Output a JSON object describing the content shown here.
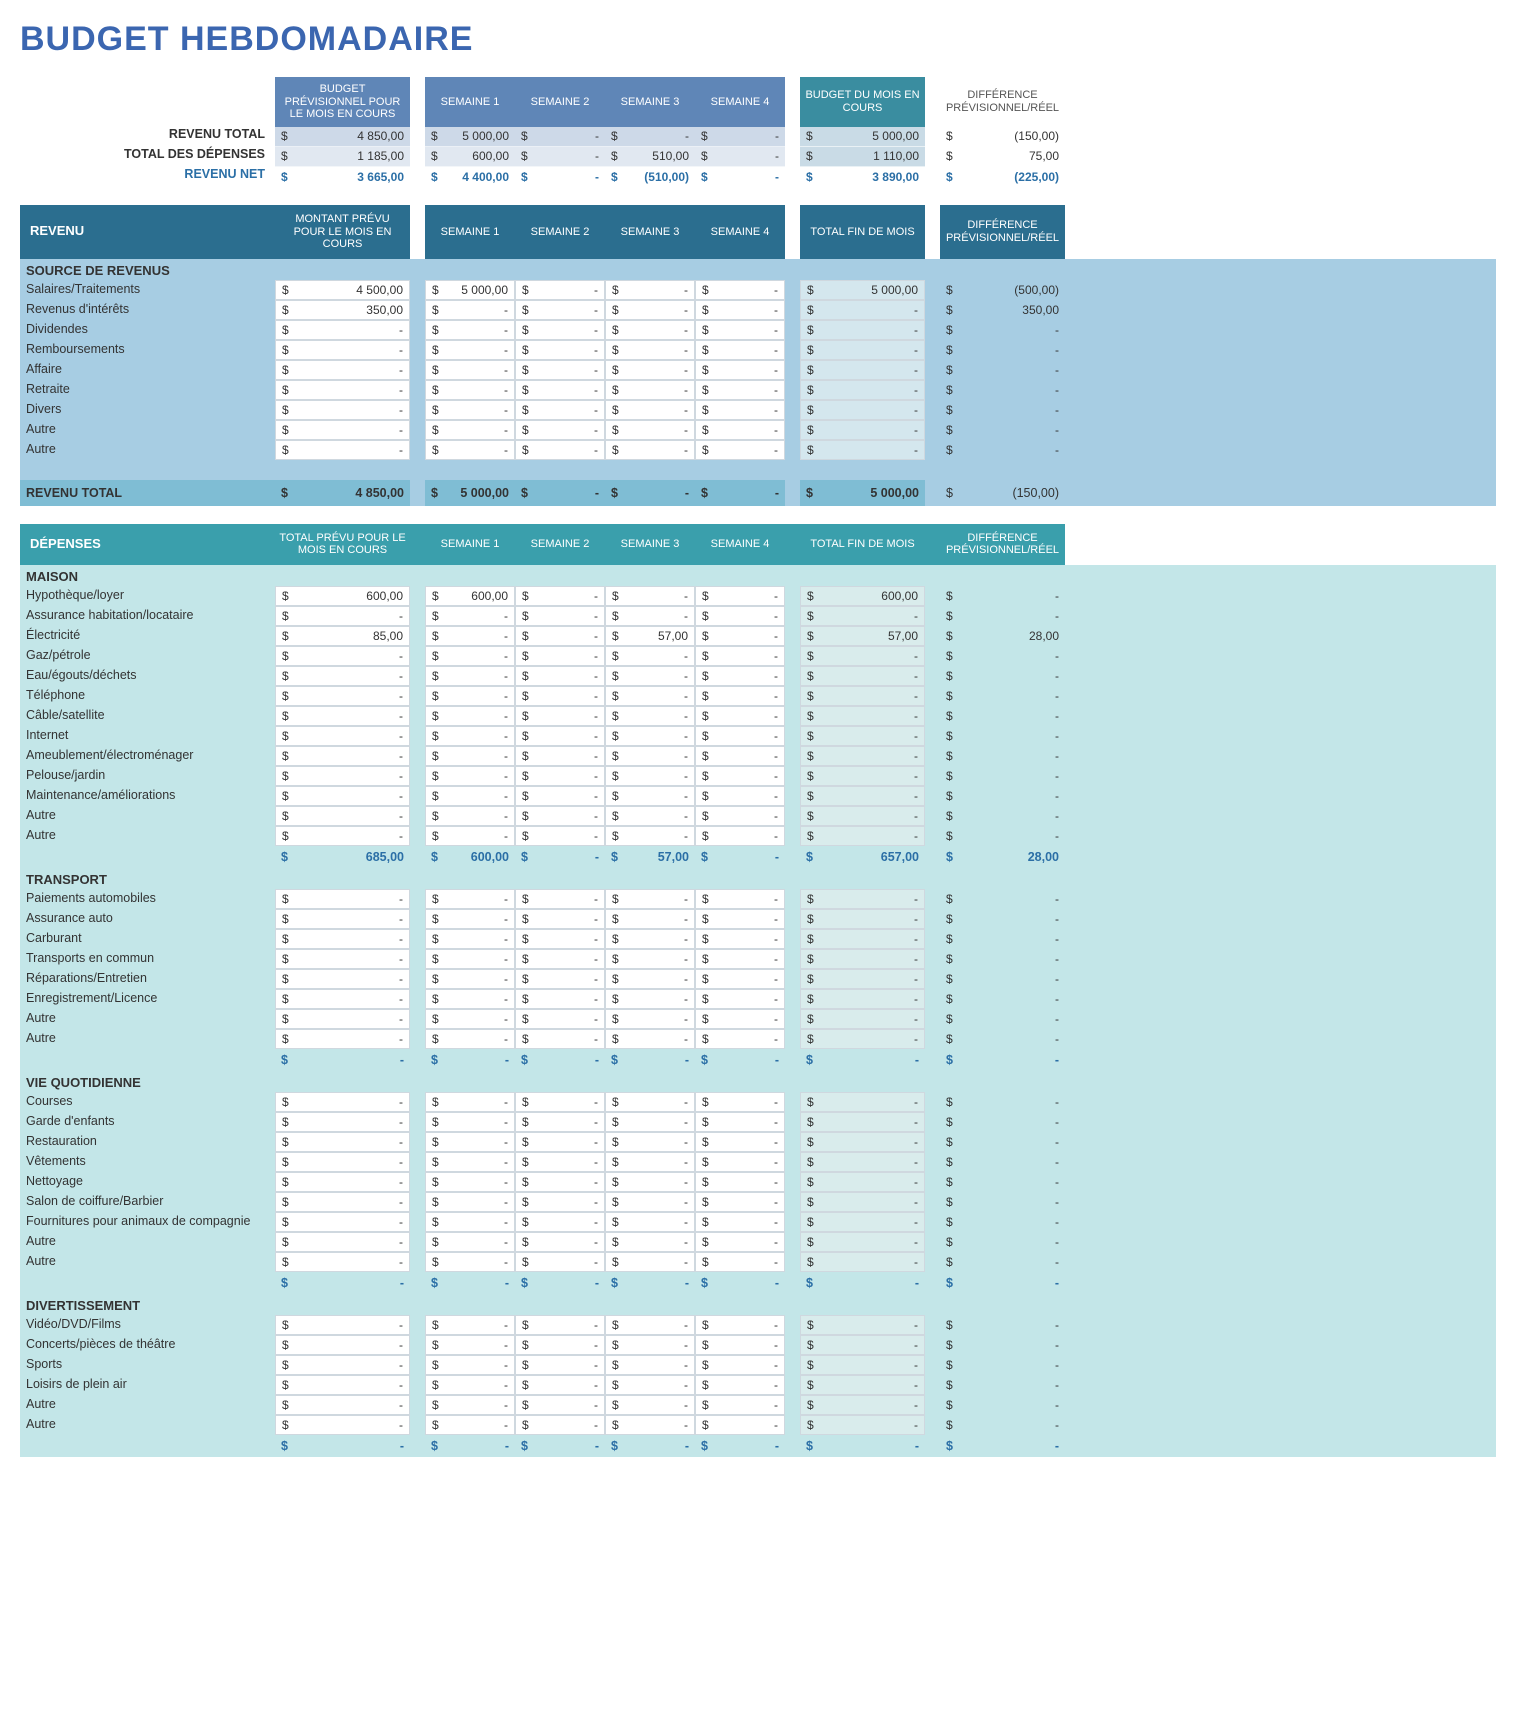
{
  "title": "BUDGET HEBDOMADAIRE",
  "colors": {
    "title": "#3b66b0",
    "pill_blue": "#5f86b7",
    "pill_teal": "#3a8da0",
    "bar_revenu": "#2b6e8f",
    "bar_depense": "#3a9fac",
    "body_revenu": "#a7cde3",
    "body_depense": "#c3e6e8",
    "accent_text": "#2b6fa6"
  },
  "headers": {
    "budget_prev": "BUDGET PRÉVISIONNEL POUR LE MOIS EN COURS",
    "week1": "SEMAINE 1",
    "week2": "SEMAINE 2",
    "week3": "SEMAINE 3",
    "week4": "SEMAINE 4",
    "budget_month": "BUDGET DU MOIS EN COURS",
    "diff": "DIFFÉRENCE PRÉVISIONNEL/RÉEL",
    "montant_prev": "MONTANT PRÉVU POUR LE MOIS EN COURS",
    "total_fin": "TOTAL FIN DE MOIS",
    "total_prev": "TOTAL PRÉVU POUR LE MOIS EN COURS"
  },
  "summary": {
    "rows": [
      {
        "label": "REVENU TOTAL",
        "prev": "4 850,00",
        "w1": "5 000,00",
        "w2": "-",
        "w3": "-",
        "w4": "-",
        "month": "5 000,00",
        "diff": "(150,00)"
      },
      {
        "label": "TOTAL DES DÉPENSES",
        "prev": "1 185,00",
        "w1": "600,00",
        "w2": "-",
        "w3": "510,00",
        "w4": "-",
        "month": "1 110,00",
        "diff": "75,00"
      }
    ],
    "net": {
      "label": "REVENU NET",
      "prev": "3 665,00",
      "w1": "4 400,00",
      "w2": "-",
      "w3": "(510,00)",
      "w4": "-",
      "month": "3 890,00",
      "diff": "(225,00)"
    }
  },
  "revenu": {
    "section_label": "REVENU",
    "source_label": "SOURCE DE REVENUS",
    "total_label": "REVENU TOTAL",
    "items": [
      {
        "label": "Salaires/Traitements",
        "prev": "4 500,00",
        "w1": "5 000,00",
        "w2": "-",
        "w3": "-",
        "w4": "-",
        "tot": "5 000,00",
        "diff": "(500,00)"
      },
      {
        "label": "Revenus d'intérêts",
        "prev": "350,00",
        "w1": "-",
        "w2": "-",
        "w3": "-",
        "w4": "-",
        "tot": "-",
        "diff": "350,00"
      },
      {
        "label": "Dividendes",
        "prev": "-",
        "w1": "-",
        "w2": "-",
        "w3": "-",
        "w4": "-",
        "tot": "-",
        "diff": "-"
      },
      {
        "label": "Remboursements",
        "prev": "-",
        "w1": "-",
        "w2": "-",
        "w3": "-",
        "w4": "-",
        "tot": "-",
        "diff": "-"
      },
      {
        "label": "Affaire",
        "prev": "-",
        "w1": "-",
        "w2": "-",
        "w3": "-",
        "w4": "-",
        "tot": "-",
        "diff": "-"
      },
      {
        "label": "Retraite",
        "prev": "-",
        "w1": "-",
        "w2": "-",
        "w3": "-",
        "w4": "-",
        "tot": "-",
        "diff": "-"
      },
      {
        "label": "Divers",
        "prev": "-",
        "w1": "-",
        "w2": "-",
        "w3": "-",
        "w4": "-",
        "tot": "-",
        "diff": "-"
      },
      {
        "label": "Autre",
        "prev": "-",
        "w1": "-",
        "w2": "-",
        "w3": "-",
        "w4": "-",
        "tot": "-",
        "diff": "-"
      },
      {
        "label": "Autre",
        "prev": "-",
        "w1": "-",
        "w2": "-",
        "w3": "-",
        "w4": "-",
        "tot": "-",
        "diff": "-"
      }
    ],
    "total": {
      "prev": "4 850,00",
      "w1": "5 000,00",
      "w2": "-",
      "w3": "-",
      "w4": "-",
      "tot": "5 000,00",
      "diff": "(150,00)"
    }
  },
  "depenses": {
    "section_label": "DÉPENSES",
    "categories": [
      {
        "title": "MAISON",
        "items": [
          {
            "label": "Hypothèque/loyer",
            "prev": "600,00",
            "w1": "600,00",
            "w2": "-",
            "w3": "-",
            "w4": "-",
            "tot": "600,00",
            "diff": "-"
          },
          {
            "label": "Assurance habitation/locataire",
            "prev": "-",
            "w1": "-",
            "w2": "-",
            "w3": "-",
            "w4": "-",
            "tot": "-",
            "diff": "-"
          },
          {
            "label": "Électricité",
            "prev": "85,00",
            "w1": "-",
            "w2": "-",
            "w3": "57,00",
            "w4": "-",
            "tot": "57,00",
            "diff": "28,00"
          },
          {
            "label": "Gaz/pétrole",
            "prev": "-",
            "w1": "-",
            "w2": "-",
            "w3": "-",
            "w4": "-",
            "tot": "-",
            "diff": "-"
          },
          {
            "label": "Eau/égouts/déchets",
            "prev": "-",
            "w1": "-",
            "w2": "-",
            "w3": "-",
            "w4": "-",
            "tot": "-",
            "diff": "-"
          },
          {
            "label": "Téléphone",
            "prev": "-",
            "w1": "-",
            "w2": "-",
            "w3": "-",
            "w4": "-",
            "tot": "-",
            "diff": "-"
          },
          {
            "label": "Câble/satellite",
            "prev": "-",
            "w1": "-",
            "w2": "-",
            "w3": "-",
            "w4": "-",
            "tot": "-",
            "diff": "-"
          },
          {
            "label": "Internet",
            "prev": "-",
            "w1": "-",
            "w2": "-",
            "w3": "-",
            "w4": "-",
            "tot": "-",
            "diff": "-"
          },
          {
            "label": "Ameublement/électroménager",
            "prev": "-",
            "w1": "-",
            "w2": "-",
            "w3": "-",
            "w4": "-",
            "tot": "-",
            "diff": "-"
          },
          {
            "label": "Pelouse/jardin",
            "prev": "-",
            "w1": "-",
            "w2": "-",
            "w3": "-",
            "w4": "-",
            "tot": "-",
            "diff": "-"
          },
          {
            "label": "Maintenance/améliorations",
            "prev": "-",
            "w1": "-",
            "w2": "-",
            "w3": "-",
            "w4": "-",
            "tot": "-",
            "diff": "-"
          },
          {
            "label": "Autre",
            "prev": "-",
            "w1": "-",
            "w2": "-",
            "w3": "-",
            "w4": "-",
            "tot": "-",
            "diff": "-"
          },
          {
            "label": "Autre",
            "prev": "-",
            "w1": "-",
            "w2": "-",
            "w3": "-",
            "w4": "-",
            "tot": "-",
            "diff": "-"
          }
        ],
        "subtotal": {
          "prev": "685,00",
          "w1": "600,00",
          "w2": "-",
          "w3": "57,00",
          "w4": "-",
          "tot": "657,00",
          "diff": "28,00"
        }
      },
      {
        "title": "TRANSPORT",
        "items": [
          {
            "label": "Paiements automobiles",
            "prev": "-",
            "w1": "-",
            "w2": "-",
            "w3": "-",
            "w4": "-",
            "tot": "-",
            "diff": "-"
          },
          {
            "label": "Assurance auto",
            "prev": "-",
            "w1": "-",
            "w2": "-",
            "w3": "-",
            "w4": "-",
            "tot": "-",
            "diff": "-"
          },
          {
            "label": "Carburant",
            "prev": "-",
            "w1": "-",
            "w2": "-",
            "w3": "-",
            "w4": "-",
            "tot": "-",
            "diff": "-"
          },
          {
            "label": "Transports en commun",
            "prev": "-",
            "w1": "-",
            "w2": "-",
            "w3": "-",
            "w4": "-",
            "tot": "-",
            "diff": "-"
          },
          {
            "label": "Réparations/Entretien",
            "prev": "-",
            "w1": "-",
            "w2": "-",
            "w3": "-",
            "w4": "-",
            "tot": "-",
            "diff": "-"
          },
          {
            "label": "Enregistrement/Licence",
            "prev": "-",
            "w1": "-",
            "w2": "-",
            "w3": "-",
            "w4": "-",
            "tot": "-",
            "diff": "-"
          },
          {
            "label": "Autre",
            "prev": "-",
            "w1": "-",
            "w2": "-",
            "w3": "-",
            "w4": "-",
            "tot": "-",
            "diff": "-"
          },
          {
            "label": "Autre",
            "prev": "-",
            "w1": "-",
            "w2": "-",
            "w3": "-",
            "w4": "-",
            "tot": "-",
            "diff": "-"
          }
        ],
        "subtotal": {
          "prev": "-",
          "w1": "-",
          "w2": "-",
          "w3": "-",
          "w4": "-",
          "tot": "-",
          "diff": "-"
        }
      },
      {
        "title": "VIE QUOTIDIENNE",
        "items": [
          {
            "label": "Courses",
            "prev": "-",
            "w1": "-",
            "w2": "-",
            "w3": "-",
            "w4": "-",
            "tot": "-",
            "diff": "-"
          },
          {
            "label": "Garde d'enfants",
            "prev": "-",
            "w1": "-",
            "w2": "-",
            "w3": "-",
            "w4": "-",
            "tot": "-",
            "diff": "-"
          },
          {
            "label": "Restauration",
            "prev": "-",
            "w1": "-",
            "w2": "-",
            "w3": "-",
            "w4": "-",
            "tot": "-",
            "diff": "-"
          },
          {
            "label": "Vêtements",
            "prev": "-",
            "w1": "-",
            "w2": "-",
            "w3": "-",
            "w4": "-",
            "tot": "-",
            "diff": "-"
          },
          {
            "label": "Nettoyage",
            "prev": "-",
            "w1": "-",
            "w2": "-",
            "w3": "-",
            "w4": "-",
            "tot": "-",
            "diff": "-"
          },
          {
            "label": "Salon de coiffure/Barbier",
            "prev": "-",
            "w1": "-",
            "w2": "-",
            "w3": "-",
            "w4": "-",
            "tot": "-",
            "diff": "-"
          },
          {
            "label": "Fournitures pour animaux de compagnie",
            "prev": "-",
            "w1": "-",
            "w2": "-",
            "w3": "-",
            "w4": "-",
            "tot": "-",
            "diff": "-"
          },
          {
            "label": "Autre",
            "prev": "-",
            "w1": "-",
            "w2": "-",
            "w3": "-",
            "w4": "-",
            "tot": "-",
            "diff": "-"
          },
          {
            "label": "Autre",
            "prev": "-",
            "w1": "-",
            "w2": "-",
            "w3": "-",
            "w4": "-",
            "tot": "-",
            "diff": "-"
          }
        ],
        "subtotal": {
          "prev": "-",
          "w1": "-",
          "w2": "-",
          "w3": "-",
          "w4": "-",
          "tot": "-",
          "diff": "-"
        }
      },
      {
        "title": "DIVERTISSEMENT",
        "items": [
          {
            "label": "Vidéo/DVD/Films",
            "prev": "-",
            "w1": "-",
            "w2": "-",
            "w3": "-",
            "w4": "-",
            "tot": "-",
            "diff": "-"
          },
          {
            "label": "Concerts/pièces de théâtre",
            "prev": "-",
            "w1": "-",
            "w2": "-",
            "w3": "-",
            "w4": "-",
            "tot": "-",
            "diff": "-"
          },
          {
            "label": "Sports",
            "prev": "-",
            "w1": "-",
            "w2": "-",
            "w3": "-",
            "w4": "-",
            "tot": "-",
            "diff": "-"
          },
          {
            "label": "Loisirs de plein air",
            "prev": "-",
            "w1": "-",
            "w2": "-",
            "w3": "-",
            "w4": "-",
            "tot": "-",
            "diff": "-"
          },
          {
            "label": "Autre",
            "prev": "-",
            "w1": "-",
            "w2": "-",
            "w3": "-",
            "w4": "-",
            "tot": "-",
            "diff": "-"
          },
          {
            "label": "Autre",
            "prev": "-",
            "w1": "-",
            "w2": "-",
            "w3": "-",
            "w4": "-",
            "tot": "-",
            "diff": "-"
          }
        ],
        "subtotal": {
          "prev": "-",
          "w1": "-",
          "w2": "-",
          "w3": "-",
          "w4": "-",
          "tot": "-",
          "diff": "-"
        }
      }
    ]
  },
  "currency": "$"
}
